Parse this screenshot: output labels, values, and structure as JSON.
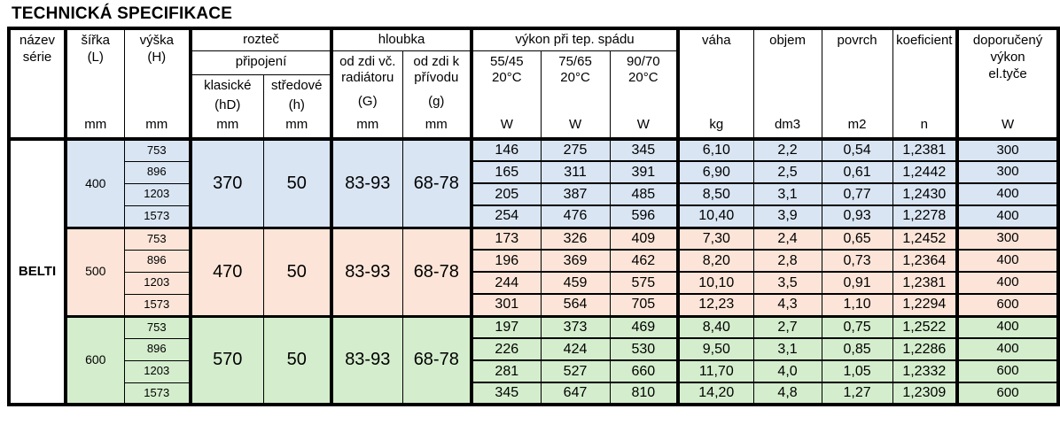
{
  "title": "TECHNICKÁ SPECIFIKACE",
  "table": {
    "series_name": "BELTI",
    "header": {
      "nazev_line1": "název",
      "nazev_line2": "série",
      "sirka_line1": "šířka",
      "sirka_line2": "(L)",
      "sirka_unit": "mm",
      "vyska_line1": "výška",
      "vyska_line2": "(H)",
      "vyska_unit": "mm",
      "roztec": "rozteč",
      "pripojeni": "připojení",
      "klasicke": "klasické",
      "klasicke_sub": "(hD)",
      "klasicke_unit": "mm",
      "stredove": "středové",
      "stredove_sub": "(h)",
      "stredove_unit": "mm",
      "hloubka": "hloubka",
      "od_zdi_vc_1": "od zdi vč.",
      "od_zdi_vc_2": "radiátoru",
      "od_zdi_vc_sub": "(G)",
      "od_zdi_vc_unit": "mm",
      "od_zdi_k_1": "od zdi k",
      "od_zdi_k_2": "přívodu",
      "od_zdi_k_sub": "(g)",
      "od_zdi_k_unit": "mm",
      "vykon": "výkon při tep. spádu",
      "t5545": "55/45",
      "t7565": "75/65",
      "t9070": "90/70",
      "temp": "20°C",
      "watt": "W",
      "vaha": "váha",
      "vaha_unit": "kg",
      "objem": "objem",
      "objem_unit": "dm3",
      "povrch": "povrch",
      "povrch_unit": "m2",
      "koeficient": "koeficient",
      "koeficient_unit": "n",
      "doporuceny_1": "doporučený",
      "doporuceny_2": "výkon",
      "doporuceny_3": "el.tyče",
      "doporuceny_unit": "W"
    },
    "group_colors": [
      "#d9e5f3",
      "#fce5d8",
      "#d4eecd"
    ],
    "groups": [
      {
        "bg": "#d9e5f3",
        "sirka": "400",
        "klasicke": "370",
        "stredove": "50",
        "hloubka_g": "83-93",
        "hloubka_gsmall": "68-78",
        "rows": [
          {
            "vyska": "753",
            "p5545": "146",
            "p7565": "275",
            "p9070": "345",
            "vaha": "6,10",
            "objem": "2,2",
            "povrch": "0,54",
            "koef": "1,2381",
            "dop": "300"
          },
          {
            "vyska": "896",
            "p5545": "165",
            "p7565": "311",
            "p9070": "391",
            "vaha": "6,90",
            "objem": "2,5",
            "povrch": "0,61",
            "koef": "1,2442",
            "dop": "300"
          },
          {
            "vyska": "1203",
            "p5545": "205",
            "p7565": "387",
            "p9070": "485",
            "vaha": "8,50",
            "objem": "3,1",
            "povrch": "0,77",
            "koef": "1,2430",
            "dop": "400"
          },
          {
            "vyska": "1573",
            "p5545": "254",
            "p7565": "476",
            "p9070": "596",
            "vaha": "10,40",
            "objem": "3,9",
            "povrch": "0,93",
            "koef": "1,2278",
            "dop": "400"
          }
        ]
      },
      {
        "bg": "#fce5d8",
        "sirka": "500",
        "klasicke": "470",
        "stredove": "50",
        "hloubka_g": "83-93",
        "hloubka_gsmall": "68-78",
        "rows": [
          {
            "vyska": "753",
            "p5545": "173",
            "p7565": "326",
            "p9070": "409",
            "vaha": "7,30",
            "objem": "2,4",
            "povrch": "0,65",
            "koef": "1,2452",
            "dop": "300"
          },
          {
            "vyska": "896",
            "p5545": "196",
            "p7565": "369",
            "p9070": "462",
            "vaha": "8,20",
            "objem": "2,8",
            "povrch": "0,73",
            "koef": "1,2364",
            "dop": "400"
          },
          {
            "vyska": "1203",
            "p5545": "244",
            "p7565": "459",
            "p9070": "575",
            "vaha": "10,10",
            "objem": "3,5",
            "povrch": "0,91",
            "koef": "1,2381",
            "dop": "400"
          },
          {
            "vyska": "1573",
            "p5545": "301",
            "p7565": "564",
            "p9070": "705",
            "vaha": "12,23",
            "objem": "4,3",
            "povrch": "1,10",
            "koef": "1,2294",
            "dop": "600"
          }
        ]
      },
      {
        "bg": "#d4eecd",
        "sirka": "600",
        "klasicke": "570",
        "stredove": "50",
        "hloubka_g": "83-93",
        "hloubka_gsmall": "68-78",
        "rows": [
          {
            "vyska": "753",
            "p5545": "197",
            "p7565": "373",
            "p9070": "469",
            "vaha": "8,40",
            "objem": "2,7",
            "povrch": "0,75",
            "koef": "1,2522",
            "dop": "400"
          },
          {
            "vyska": "896",
            "p5545": "226",
            "p7565": "424",
            "p9070": "530",
            "vaha": "9,50",
            "objem": "3,1",
            "povrch": "0,85",
            "koef": "1,2286",
            "dop": "400"
          },
          {
            "vyska": "1203",
            "p5545": "281",
            "p7565": "527",
            "p9070": "660",
            "vaha": "11,70",
            "objem": "4,0",
            "povrch": "1,05",
            "koef": "1,2332",
            "dop": "600"
          },
          {
            "vyska": "1573",
            "p5545": "345",
            "p7565": "647",
            "p9070": "810",
            "vaha": "14,20",
            "objem": "4,8",
            "povrch": "1,27",
            "koef": "1,2309",
            "dop": "600"
          }
        ]
      }
    ]
  }
}
